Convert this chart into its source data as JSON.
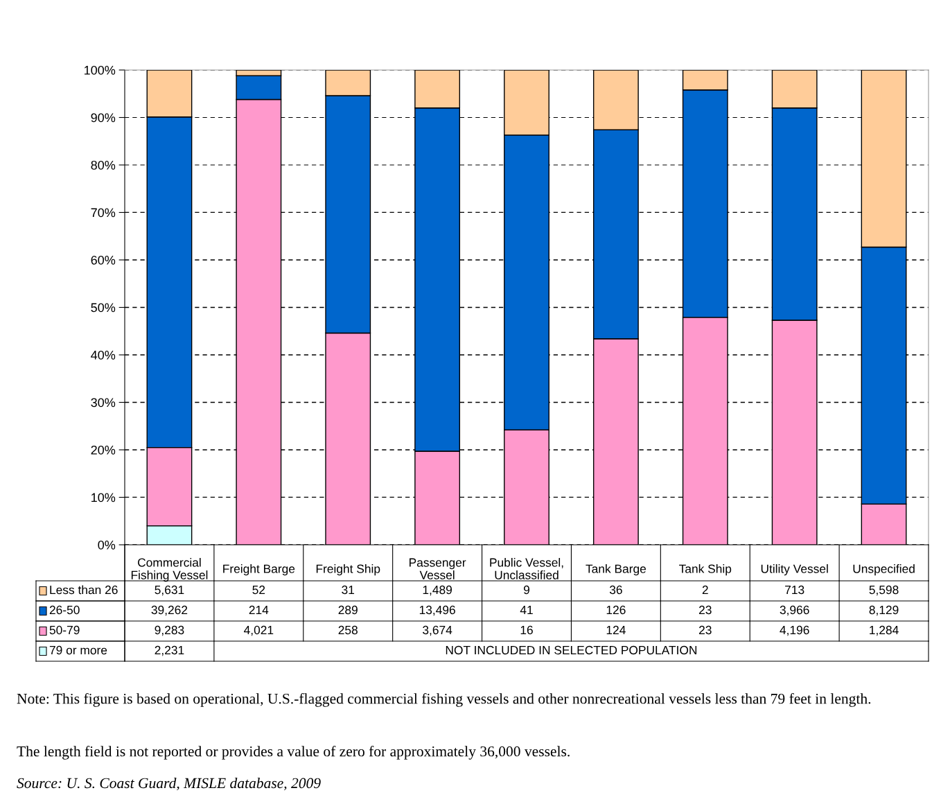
{
  "chart_data": {
    "type": "bar",
    "stacked": true,
    "categories": [
      "Commercial\nFishing Vessel",
      "Freight Barge",
      "Freight Ship",
      "Passenger\nVessel",
      "Public Vessel,\nUnclassified",
      "Tank Barge",
      "Tank Ship",
      "Utility Vessel",
      "Unspecified"
    ],
    "series": [
      {
        "name": "79 or more",
        "color": "#ccffff",
        "values": [
          4.0,
          null,
          null,
          null,
          null,
          null,
          null,
          null,
          null
        ]
      },
      {
        "name": "50-79",
        "color": "#ff99cc",
        "values": [
          16.5,
          93.8,
          44.6,
          19.7,
          24.2,
          43.4,
          47.9,
          47.3,
          8.6
        ]
      },
      {
        "name": "26-50",
        "color": "#0066cc",
        "values": [
          69.6,
          5.0,
          50.0,
          72.3,
          62.1,
          44.0,
          47.9,
          44.7,
          54.1
        ]
      },
      {
        "name": "Less than 26",
        "color": "#ffcc99",
        "values": [
          9.9,
          1.2,
          5.4,
          8.0,
          13.7,
          12.6,
          4.2,
          8.0,
          37.3
        ]
      }
    ],
    "ylim": [
      0,
      100
    ],
    "yticks": [
      {
        "value": 0,
        "label": "0%"
      },
      {
        "value": 10,
        "label": "10%"
      },
      {
        "value": 20,
        "label": "20%"
      },
      {
        "value": 30,
        "label": "30%"
      },
      {
        "value": 40,
        "label": "40%"
      },
      {
        "value": 50,
        "label": "50%"
      },
      {
        "value": 60,
        "label": "60%"
      },
      {
        "value": 70,
        "label": "70%"
      },
      {
        "value": 80,
        "label": "80%"
      },
      {
        "value": 90,
        "label": "90%"
      },
      {
        "value": 100,
        "label": "100%"
      }
    ],
    "grid": "y",
    "line_style": "dashed",
    "legend": "bottom",
    "annotations": [
      "5,631",
      "52",
      "31",
      "1,489",
      "9",
      "36",
      "2",
      "713",
      "5,598",
      "39,262",
      "214",
      "289",
      "13,496",
      "41",
      "126",
      "23",
      "3,966",
      "8,129",
      "9,283",
      "4,021",
      "258",
      "3,674",
      "16",
      "124",
      "23",
      "4,196",
      "1,284",
      "2,231",
      "NOT INCLUDED IN SELECTED POPULATION",
      "Note: This figure is based on operational, U.S.-flagged commercial fishing vessels and other nonrecreational vessels less than 79 feet in length.",
      "The length field is not reported or provides a value of zero for approximately 36,000 vessels.",
      "Source: U. S. Coast Guard, MISLE database, 2009"
    ]
  }
}
